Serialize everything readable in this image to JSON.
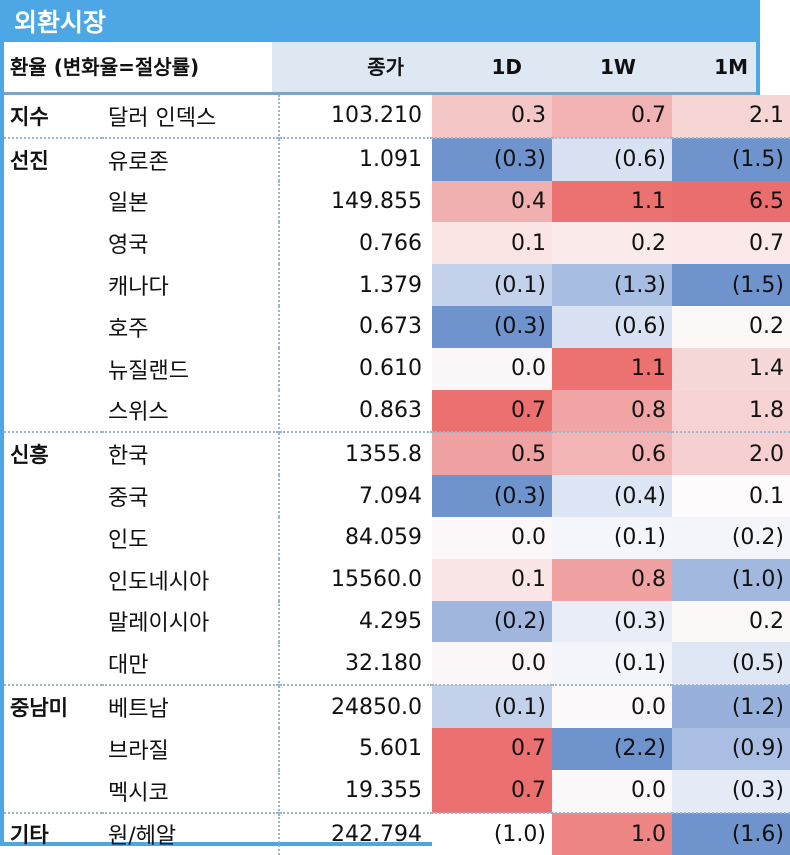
{
  "title": "외환시장",
  "header": {
    "label": "환율 (변화율=절상률)",
    "close": "종가",
    "d1": "1D",
    "w1": "1W",
    "m1": "1M"
  },
  "rows": [
    {
      "group": "지수",
      "name": "달러 인덱스",
      "close": "103.210",
      "d1": "0.3",
      "w1": "0.7",
      "m1": "2.1",
      "c": [
        "#f4c6c6",
        "#f1b3b3",
        "#f6d5d5"
      ]
    },
    {
      "group": "선진",
      "name": "유로존",
      "close": "1.091",
      "d1": "(0.3)",
      "w1": "(0.6)",
      "m1": "(1.5)",
      "c": [
        "#6f93cc",
        "#d8e2f2",
        "#6f93cc"
      ]
    },
    {
      "group": "",
      "name": "일본",
      "close": "149.855",
      "d1": "0.4",
      "w1": "1.1",
      "m1": "6.5",
      "c": [
        "#f0b0b0",
        "#ec7171",
        "#eb6e6e"
      ]
    },
    {
      "group": "",
      "name": "영국",
      "close": "0.766",
      "d1": "0.1",
      "w1": "0.2",
      "m1": "0.7",
      "c": [
        "#fae4e4",
        "#fbeaea",
        "#fbe9e9"
      ]
    },
    {
      "group": "",
      "name": "캐나다",
      "close": "1.379",
      "d1": "(0.1)",
      "w1": "(1.3)",
      "m1": "(1.5)",
      "c": [
        "#c3d1ea",
        "#a7bde2",
        "#6f93cc"
      ]
    },
    {
      "group": "",
      "name": "호주",
      "close": "0.673",
      "d1": "(0.3)",
      "w1": "(0.6)",
      "m1": "0.2",
      "c": [
        "#6f93cc",
        "#d8e2f2",
        "#fdf8f8"
      ]
    },
    {
      "group": "",
      "name": "뉴질랜드",
      "close": "0.610",
      "d1": "0.0",
      "w1": "1.1",
      "m1": "1.4",
      "c": [
        "#fbf6f8",
        "#ec7171",
        "#f6d8d8"
      ]
    },
    {
      "group": "",
      "name": "스위스",
      "close": "0.863",
      "d1": "0.7",
      "w1": "0.8",
      "m1": "1.8",
      "c": [
        "#ec7070",
        "#f0a4a4",
        "#f6d2d2"
      ]
    },
    {
      "group": "신흥",
      "name": "한국",
      "close": "1355.8",
      "d1": "0.5",
      "w1": "0.6",
      "m1": "2.0",
      "c": [
        "#eea2a2",
        "#f2b4b4",
        "#f6d0d0"
      ]
    },
    {
      "group": "",
      "name": "중국",
      "close": "7.094",
      "d1": "(0.3)",
      "w1": "(0.4)",
      "m1": "0.1",
      "c": [
        "#6f93cc",
        "#dde6f4",
        "#fdfbfb"
      ]
    },
    {
      "group": "",
      "name": "인도",
      "close": "84.059",
      "d1": "0.0",
      "w1": "(0.1)",
      "m1": "(0.2)",
      "c": [
        "#fcf8fa",
        "#f4f6fb",
        "#f3f5fb"
      ]
    },
    {
      "group": "",
      "name": "인도네시아",
      "close": "15560.0",
      "d1": "0.1",
      "w1": "0.8",
      "m1": "(1.0)",
      "c": [
        "#fae6e6",
        "#f0a2a2",
        "#a2b8df"
      ]
    },
    {
      "group": "",
      "name": "말레이시아",
      "close": "4.295",
      "d1": "(0.2)",
      "w1": "(0.3)",
      "m1": "0.2",
      "c": [
        "#a0b6de",
        "#e8edf7",
        "#fdf8f8"
      ]
    },
    {
      "group": "",
      "name": "대만",
      "close": "32.180",
      "d1": "0.0",
      "w1": "(0.1)",
      "m1": "(0.5)",
      "c": [
        "#fbf6f8",
        "#f3f5fb",
        "#dfe7f4"
      ]
    },
    {
      "group": "중남미",
      "name": "베트남",
      "close": "24850.0",
      "d1": "(0.1)",
      "w1": "0.0",
      "m1": "(1.2)",
      "c": [
        "#c3d1ea",
        "#fbf9fa",
        "#98b0dc"
      ]
    },
    {
      "group": "",
      "name": "브라질",
      "close": "5.601",
      "d1": "0.7",
      "w1": "(2.2)",
      "m1": "(0.9)",
      "c": [
        "#ec7070",
        "#6f93cc",
        "#a9bee2"
      ]
    },
    {
      "group": "",
      "name": "멕시코",
      "close": "19.355",
      "d1": "0.7",
      "w1": "0.0",
      "m1": "(0.3)",
      "c": [
        "#ec7070",
        "#fbf8f9",
        "#e4eaf6"
      ]
    },
    {
      "group": "기타",
      "name": "원/헤알",
      "close": "242.794",
      "d1": "(1.0)",
      "w1": "1.0",
      "m1": "(1.6)",
      "c": [
        "#ffffff",
        "#ed8585",
        "#6f93cc"
      ]
    }
  ]
}
